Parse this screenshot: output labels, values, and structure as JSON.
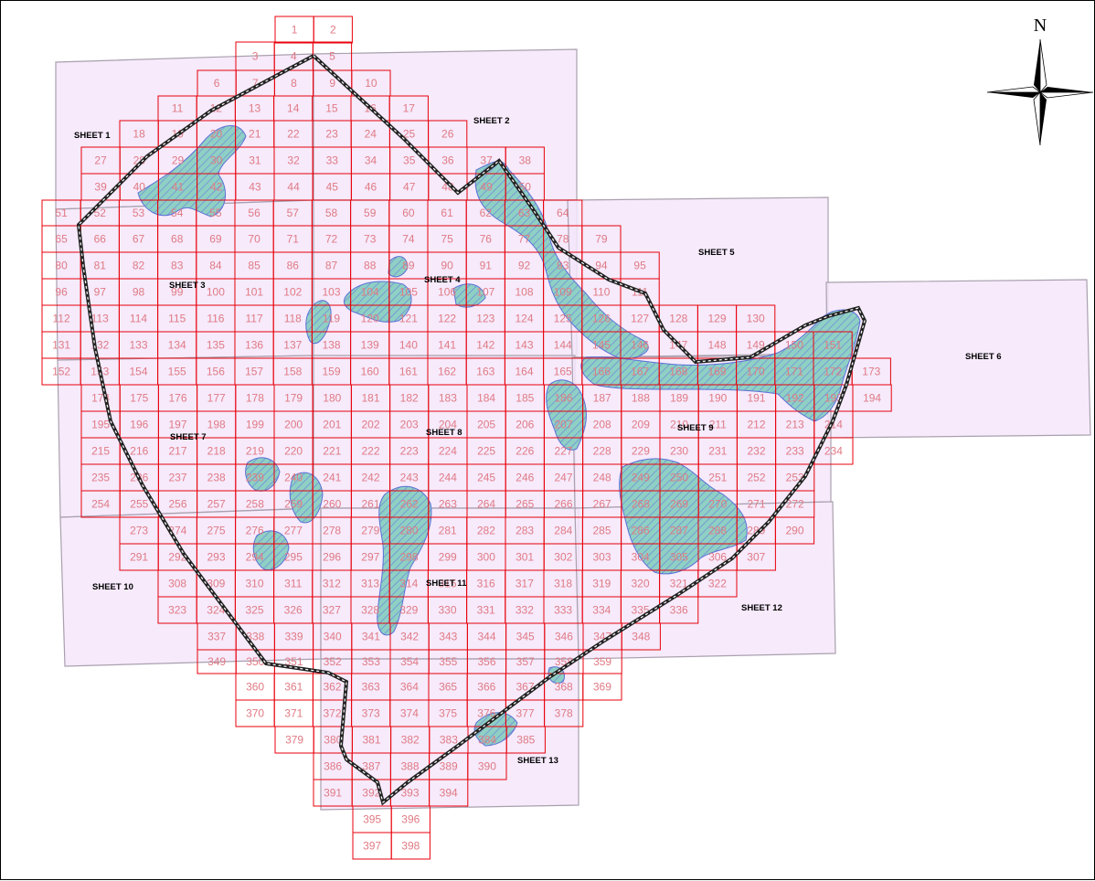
{
  "map": {
    "north_label": "N",
    "colors": {
      "sheet_fill": "#f5e6fa",
      "grid_line": "#e8000b",
      "grid_text": "#e07a84",
      "wetland_fill": "#8fd0c4",
      "wetland_stroke": "#5b6fd6",
      "boundary": "#222222"
    },
    "sheets": [
      {
        "id": "SHEET 1",
        "label": "SHEET 1"
      },
      {
        "id": "SHEET 2",
        "label": "SHEET 2"
      },
      {
        "id": "SHEET 3",
        "label": "SHEET 3"
      },
      {
        "id": "SHEET 4",
        "label": "SHEET 4"
      },
      {
        "id": "SHEET 5",
        "label": "SHEET 5"
      },
      {
        "id": "SHEET 6",
        "label": "SHEET 6"
      },
      {
        "id": "SHEET 7",
        "label": "SHEET 7"
      },
      {
        "id": "SHEET 8",
        "label": "SHEET 8"
      },
      {
        "id": "SHEET 9",
        "label": "SHEET 9"
      },
      {
        "id": "SHEET 10",
        "label": "SHEET 10"
      },
      {
        "id": "SHEET 11",
        "label": "SHEET 11"
      },
      {
        "id": "SHEET 12",
        "label": "SHEET 12"
      },
      {
        "id": "SHEET 13",
        "label": "SHEET 13"
      }
    ],
    "grid_rows": [
      [
        1,
        2
      ],
      [
        3,
        4,
        5
      ],
      [
        6,
        7,
        8,
        9,
        10
      ],
      [
        11,
        12,
        13,
        14,
        15,
        16,
        17
      ],
      [
        18,
        19,
        20,
        21,
        22,
        23,
        24,
        25,
        26
      ],
      [
        27,
        28,
        29,
        30,
        31,
        32,
        33,
        34,
        35,
        36,
        37,
        38
      ],
      [
        39,
        40,
        41,
        42,
        43,
        44,
        45,
        46,
        47,
        48,
        49,
        50
      ],
      [
        51,
        52,
        53,
        54,
        55,
        56,
        57,
        58,
        59,
        60,
        61,
        62,
        63,
        64
      ],
      [
        65,
        66,
        67,
        68,
        69,
        70,
        71,
        72,
        73,
        74,
        75,
        76,
        77,
        78,
        79
      ],
      [
        80,
        81,
        82,
        83,
        84,
        85,
        86,
        87,
        88,
        89,
        90,
        91,
        92,
        93,
        94,
        95
      ],
      [
        96,
        97,
        98,
        99,
        100,
        101,
        102,
        103,
        104,
        105,
        106,
        107,
        108,
        109,
        110,
        111
      ],
      [
        112,
        113,
        114,
        115,
        116,
        117,
        118,
        119,
        120,
        121,
        122,
        123,
        124,
        125,
        126,
        127,
        128,
        129,
        130
      ],
      [
        131,
        132,
        133,
        134,
        135,
        136,
        137,
        138,
        139,
        140,
        141,
        142,
        143,
        144,
        145,
        146,
        147,
        148,
        149,
        150,
        151
      ],
      [
        152,
        153,
        154,
        155,
        156,
        157,
        158,
        159,
        160,
        161,
        162,
        163,
        164,
        165,
        166,
        167,
        168,
        169,
        170,
        171,
        172,
        173
      ],
      [
        174,
        175,
        176,
        177,
        178,
        179,
        180,
        181,
        182,
        183,
        184,
        185,
        186,
        187,
        188,
        189,
        190,
        191,
        192,
        193,
        194
      ],
      [
        195,
        196,
        197,
        198,
        199,
        200,
        201,
        202,
        203,
        204,
        205,
        206,
        207,
        208,
        209,
        210,
        211,
        212,
        213,
        214
      ],
      [
        215,
        216,
        217,
        218,
        219,
        220,
        221,
        222,
        223,
        224,
        225,
        226,
        227,
        228,
        229,
        230,
        231,
        232,
        233,
        234
      ],
      [
        235,
        236,
        237,
        238,
        239,
        240,
        241,
        242,
        243,
        244,
        245,
        246,
        247,
        248,
        249,
        250,
        251,
        252,
        253
      ],
      [
        254,
        255,
        256,
        257,
        258,
        259,
        260,
        261,
        262,
        263,
        264,
        265,
        266,
        267,
        268,
        269,
        270,
        271,
        272
      ],
      [
        273,
        274,
        275,
        276,
        277,
        278,
        279,
        280,
        281,
        282,
        283,
        284,
        285,
        286,
        287,
        288,
        289,
        290
      ],
      [
        291,
        292,
        293,
        294,
        295,
        296,
        297,
        298,
        299,
        300,
        301,
        302,
        303,
        304,
        305,
        306,
        307
      ],
      [
        308,
        309,
        310,
        311,
        312,
        313,
        314,
        315,
        316,
        317,
        318,
        319,
        320,
        321,
        322
      ],
      [
        323,
        324,
        325,
        326,
        327,
        328,
        329,
        330,
        331,
        332,
        333,
        334,
        335,
        336
      ],
      [
        337,
        338,
        339,
        340,
        341,
        342,
        343,
        344,
        345,
        346,
        347,
        348
      ],
      [
        349,
        350,
        351,
        352,
        353,
        354,
        355,
        356,
        357,
        358,
        359
      ],
      [
        360,
        361,
        362,
        363,
        364,
        365,
        366,
        367,
        368,
        369
      ],
      [
        370,
        371,
        372,
        373,
        374,
        375,
        376,
        377,
        378
      ],
      [
        379,
        380,
        381,
        382,
        383,
        384,
        385
      ],
      [
        386,
        387,
        388,
        389,
        390
      ],
      [
        391,
        392,
        393,
        394
      ],
      [
        395,
        396
      ],
      [
        397,
        398
      ]
    ]
  }
}
